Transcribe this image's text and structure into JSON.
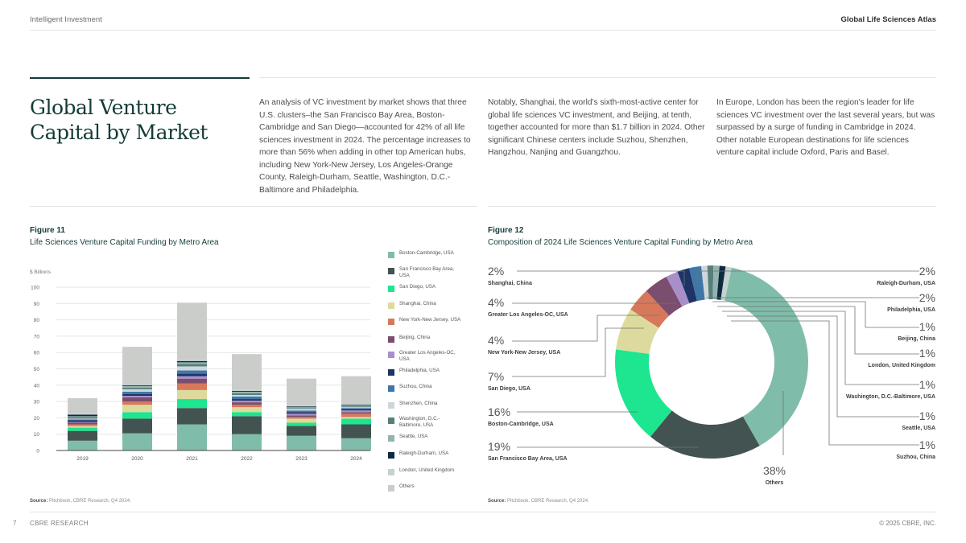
{
  "header": {
    "left": "Intelligent Investment",
    "right": "Global Life Sciences Atlas"
  },
  "section": {
    "title": "Global Venture Capital by Market",
    "paragraphs": [
      "An analysis of VC investment by market shows that three U.S. clusters–the San Francisco Bay Area, Boston-Cambridge and San Diego—accounted for 42% of all life sciences investment in 2024. The percentage increases to more than 56% when adding in other top American hubs, including New York-New Jersey, Los Angeles-Orange County, Raleigh-Durham, Seattle, Washington, D.C.-Baltimore and Philadelphia.",
      "Notably, Shanghai, the world's sixth-most-active center for global life sciences VC investment, and Beijing, at tenth, together accounted for more than $1.7 billion in 2024. Other significant Chinese centers include Suzhou, Shenzhen, Hangzhou, Nanjing and Guangzhou.",
      "In Europe, London has been the region's leader for life sciences VC investment over the last several years, but was surpassed by a surge of funding in Cambridge in 2024. Other notable European destinations for life sciences venture capital include Oxford, Paris and Basel."
    ]
  },
  "figure11": {
    "label": "Figure 11",
    "subtitle": "Life Sciences Venture Capital Funding by Metro Area",
    "source_label": "Source:",
    "source_text": "Pitchbook, CBRE Research, Q4 2024."
  },
  "figure12": {
    "label": "Figure 12",
    "subtitle": "Composition of  2024 Life Sciences Venture Capital Funding by Metro Area",
    "source_label": "Source:",
    "source_text": "Pitchbook, CBRE Research, Q4 2024."
  },
  "footer": {
    "page_number": "7",
    "left": "CBRE RESEARCH",
    "right": "© 2025 CBRE, INC."
  },
  "chart_data": [
    {
      "type": "bar",
      "stacked": true,
      "title": "Life Sciences Venture Capital Funding by Metro Area",
      "xlabel": "",
      "ylabel": "$ Billions",
      "ylim": [
        0,
        100
      ],
      "yticks": [
        0,
        10,
        20,
        30,
        40,
        50,
        60,
        70,
        80,
        90,
        100
      ],
      "grid": true,
      "legend_position": "right",
      "categories": [
        "2019",
        "2020",
        "2021",
        "2022",
        "2023",
        "2024"
      ],
      "series": [
        {
          "name": "Boston-Cambridge, USA",
          "color": "#80bcaa",
          "values": [
            6,
            10.5,
            16,
            10,
            9,
            7.5
          ]
        },
        {
          "name": "San Francisco Bay Area, USA",
          "color": "#435351",
          "values": [
            6,
            9,
            10,
            11,
            6,
            8.5
          ]
        },
        {
          "name": "San Diego, USA",
          "color": "#1ee58f",
          "values": [
            2,
            4,
            5.5,
            2.5,
            2,
            3.5
          ]
        },
        {
          "name": "Shanghai, China",
          "color": "#dcdb9d",
          "values": [
            1,
            4.5,
            5.5,
            3,
            2.5,
            1
          ]
        },
        {
          "name": "New York-New Jersey, USA",
          "color": "#d8785b",
          "values": [
            1,
            2,
            4,
            1.5,
            1,
            2
          ]
        },
        {
          "name": "Beijing, China",
          "color": "#7b4d6e",
          "values": [
            1,
            2.5,
            3,
            1.5,
            1,
            1
          ]
        },
        {
          "name": "Greater Los Angeles-OC, USA",
          "color": "#a98fc9",
          "values": [
            0.5,
            1,
            1.5,
            1,
            1,
            1
          ]
        },
        {
          "name": "Philadelphia, USA",
          "color": "#1f3466",
          "values": [
            1,
            1,
            1.5,
            1,
            1,
            1
          ]
        },
        {
          "name": "Suzhou, China",
          "color": "#3f77a8",
          "values": [
            0.5,
            1.5,
            2,
            1.5,
            1,
            0.5
          ]
        },
        {
          "name": "Shenzhen, China",
          "color": "#cfd6d9",
          "values": [
            0.5,
            1.5,
            2.5,
            1,
            1,
            0.5
          ]
        },
        {
          "name": "Washington, D.C.-Baltimore, USA",
          "color": "#55807a",
          "values": [
            1,
            1,
            1.5,
            1,
            0.5,
            0.5
          ]
        },
        {
          "name": "Seattle, USA",
          "color": "#96b2b0",
          "values": [
            0.5,
            1,
            1,
            1,
            0.5,
            0.5
          ]
        },
        {
          "name": "Raleigh-Durham, USA",
          "color": "#0d2a40",
          "values": [
            1,
            0.5,
            0.8,
            0.5,
            0.5,
            0.5
          ]
        },
        {
          "name": "London, United Kingdom",
          "color": "#c3d3cf",
          "values": [
            0.3,
            0.5,
            0.7,
            0.5,
            0.5,
            0.5
          ]
        },
        {
          "name": "Others",
          "color": "#cbcdcb",
          "values": [
            9.7,
            23,
            35,
            22,
            16.5,
            17
          ]
        }
      ]
    },
    {
      "type": "pie",
      "donut": true,
      "title": "Composition of 2024 Life Sciences Venture Capital Funding by Metro Area",
      "slices": [
        {
          "name": "Others",
          "value": 38,
          "label": "38%",
          "color": "#80bcaa"
        },
        {
          "name": "San Francisco Bay Area, USA",
          "value": 19,
          "label": "19%",
          "color": "#435351"
        },
        {
          "name": "Boston-Cambridge, USA",
          "value": 16,
          "label": "16%",
          "color": "#1ee58f"
        },
        {
          "name": "San Diego, USA",
          "value": 7,
          "label": "7%",
          "color": "#dcdb9d"
        },
        {
          "name": "New York-New Jersey, USA",
          "value": 4,
          "label": "4%",
          "color": "#d8785b"
        },
        {
          "name": "Greater Los Angeles-OC, USA",
          "value": 4,
          "label": "4%",
          "color": "#7b4d6e"
        },
        {
          "name": "Shanghai, China",
          "value": 2,
          "label": "2%",
          "color": "#a98fc9"
        },
        {
          "name": "Raleigh-Durham, USA",
          "value": 2,
          "label": "2%",
          "color": "#1f3466"
        },
        {
          "name": "Philadelphia, USA",
          "value": 2,
          "label": "2%",
          "color": "#3f77a8"
        },
        {
          "name": "Beijing, China",
          "value": 1,
          "label": "1%",
          "color": "#cfd6d9"
        },
        {
          "name": "London, United Kingdom",
          "value": 1,
          "label": "1%",
          "color": "#55807a"
        },
        {
          "name": "Washington, D.C.-Baltimore, USA",
          "value": 1,
          "label": "1%",
          "color": "#96b2b0"
        },
        {
          "name": "Seattle, USA",
          "value": 1,
          "label": "1%",
          "color": "#0d2a40"
        },
        {
          "name": "Suzhou, China",
          "value": 1,
          "label": "1%",
          "color": "#c3d3cf"
        }
      ]
    }
  ]
}
